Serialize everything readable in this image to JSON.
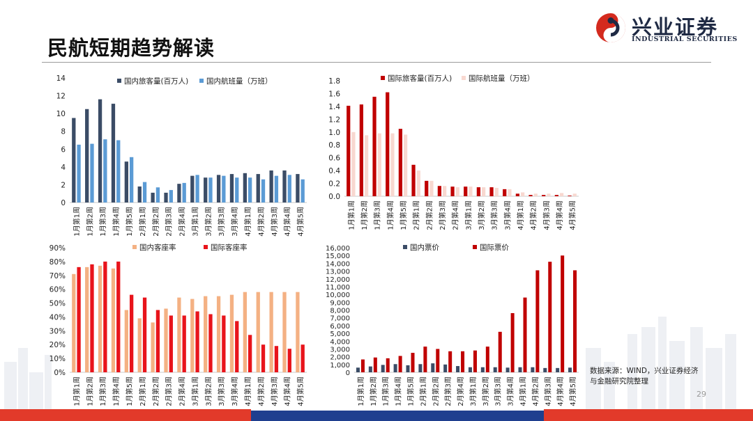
{
  "title": "民航短期趋势解读",
  "logo": {
    "name": "兴业证券",
    "english": "INDUSTRIAL SECURITIES",
    "colors": {
      "red": "#d42a1e",
      "navy": "#1f2a44"
    }
  },
  "source_text": "数据来源：WIND，兴业证券经济与金融研究院整理",
  "page_number": "29",
  "colors": {
    "dark_blue": "#3b4c66",
    "light_blue": "#5b9bd5",
    "dark_red": "#c00000",
    "pale_pink": "#f8d8d0",
    "peach": "#f4b183",
    "bright_red": "#e8141b",
    "accent_blue": "#1f3f8f"
  },
  "chart_data": [
    {
      "type": "bar",
      "categories": [
        "1月第1周",
        "1月第2周",
        "1月第3周",
        "1月第4周",
        "1月第5周",
        "2月第1周",
        "2月第2周",
        "2月第3周",
        "2月第4周",
        "3月第1周",
        "3月第2周",
        "3月第3周",
        "3月第4周",
        "4月第1周",
        "4月第2周",
        "4月第3周",
        "4月第4周",
        "4月第5周"
      ],
      "series": [
        {
          "name": "国内旅客量(百万人)",
          "color": "#3b4c66",
          "values": [
            9.5,
            10.5,
            11.6,
            11.1,
            4.6,
            1.8,
            1.1,
            1.1,
            2.1,
            3.0,
            2.8,
            3.1,
            3.2,
            3.3,
            3.2,
            3.6,
            3.6,
            3.2
          ]
        },
        {
          "name": "国内航班量（万班）",
          "color": "#5b9bd5",
          "values": [
            6.5,
            6.6,
            7.1,
            7.0,
            5.1,
            2.3,
            1.7,
            1.4,
            2.2,
            3.1,
            2.8,
            3.0,
            2.8,
            2.8,
            2.6,
            3.0,
            3.1,
            2.6
          ]
        }
      ],
      "ylim": [
        0,
        14
      ],
      "yticks": [
        "0",
        "2",
        "4",
        "6",
        "8",
        "10",
        "12",
        "14"
      ]
    },
    {
      "type": "bar",
      "categories": [
        "1月第1周",
        "1月第2周",
        "1月第3周",
        "1月第4周",
        "1月第5周",
        "2月第1周",
        "2月第2周",
        "2月第3周",
        "2月第4周",
        "3月第1周",
        "3月第2周",
        "3月第3周",
        "3月第4周",
        "4月第1周",
        "4月第2周",
        "4月第3周",
        "4月第4周",
        "4月第5周"
      ],
      "series": [
        {
          "name": "国际旅客量(百万人)",
          "color": "#c00000",
          "values": [
            1.41,
            1.43,
            1.55,
            1.62,
            1.05,
            0.49,
            0.24,
            0.16,
            0.15,
            0.15,
            0.14,
            0.14,
            0.11,
            0.04,
            0.02,
            0.02,
            0.02,
            0.01
          ]
        },
        {
          "name": "国际航班量（万班）",
          "color": "#f8d8d0",
          "values": [
            1.0,
            0.95,
            0.98,
            0.98,
            0.96,
            0.4,
            0.24,
            0.16,
            0.14,
            0.15,
            0.14,
            0.13,
            0.11,
            0.06,
            0.04,
            0.04,
            0.05,
            0.04
          ]
        }
      ],
      "ylim": [
        0,
        1.8
      ],
      "yticks": [
        "0.0",
        "0.2",
        "0.4",
        "0.6",
        "0.8",
        "1.0",
        "1.2",
        "1.4",
        "1.6",
        "1.8"
      ]
    },
    {
      "type": "bar",
      "categories": [
        "1月第1周",
        "1月第2周",
        "1月第3周",
        "1月第4周",
        "1月第5周",
        "2月第1周",
        "2月第2周",
        "2月第3周",
        "2月第4周",
        "3月第1周",
        "3月第2周",
        "3月第3周",
        "3月第4周",
        "4月第1周",
        "4月第2周",
        "4月第3周",
        "4月第4周",
        "4月第5周"
      ],
      "series": [
        {
          "name": "国内客座率",
          "color": "#f4b183",
          "values": [
            71,
            76,
            77,
            75,
            45,
            39,
            36,
            46,
            54,
            53,
            55,
            55,
            56,
            58,
            58,
            58,
            58,
            58
          ]
        },
        {
          "name": "国际客座率",
          "color": "#e8141b",
          "values": [
            76,
            78,
            80,
            80,
            56,
            54,
            45,
            41,
            41,
            44,
            42,
            41,
            37,
            27,
            20,
            19,
            17,
            20
          ]
        }
      ],
      "ylim": [
        0,
        90
      ],
      "yticks": [
        "0%",
        "10%",
        "20%",
        "30%",
        "40%",
        "50%",
        "60%",
        "70%",
        "80%",
        "90%"
      ]
    },
    {
      "type": "bar",
      "categories": [
        "1月第1周",
        "1月第2周",
        "1月第3周",
        "1月第4周",
        "1月第5周",
        "2月第1周",
        "2月第2周",
        "2月第3周",
        "2月第4周",
        "3月第1周",
        "3月第2周",
        "3月第3周",
        "3月第4周",
        "4月第1周",
        "4月第2周",
        "4月第3周",
        "4月第4周",
        "4月第5周"
      ],
      "series": [
        {
          "name": "国内票价",
          "color": "#3b4c66",
          "values": [
            600,
            750,
            950,
            1050,
            900,
            1050,
            1150,
            1000,
            800,
            650,
            650,
            650,
            600,
            650,
            650,
            550,
            550,
            600
          ]
        },
        {
          "name": "国际票价",
          "color": "#c00000",
          "values": [
            1650,
            1900,
            1800,
            2100,
            2500,
            3300,
            3000,
            2700,
            2700,
            2800,
            3300,
            5200,
            7600,
            9600,
            13100,
            14200,
            15000,
            13100
          ]
        }
      ],
      "ylim": [
        0,
        16000
      ],
      "yticks": [
        "0",
        "1,000",
        "2,000",
        "3,000",
        "4,000",
        "5,000",
        "6,000",
        "7,000",
        "8,000",
        "9,000",
        "10,000",
        "11,000",
        "12,000",
        "13,000",
        "14,000",
        "15,000",
        "16,000"
      ]
    }
  ]
}
